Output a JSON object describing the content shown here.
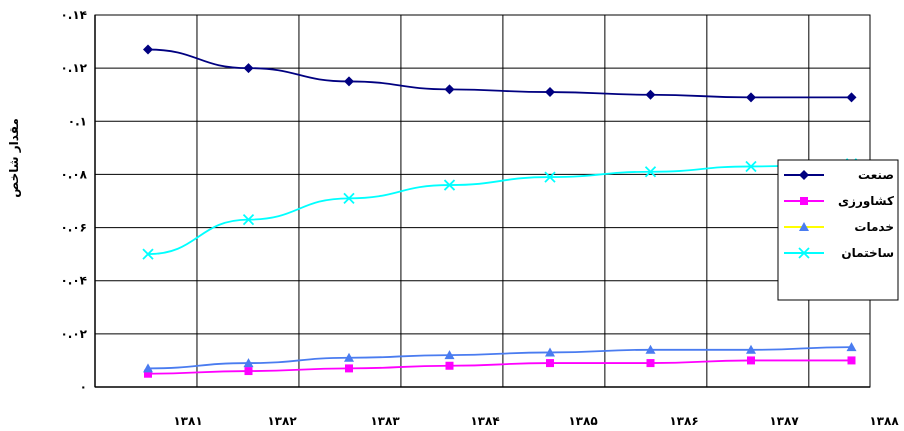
{
  "chart_data": {
    "type": "line",
    "title": "",
    "xlabel": "",
    "ylabel": "مقدار شاخص",
    "ylim": [
      0,
      0.14
    ],
    "y_ticks": [
      "۰",
      "۰.۰۲",
      "۰.۰۴",
      "۰.۰۶",
      "۰.۰۸",
      "۰.۱",
      "۰.۱۲",
      "۰.۱۴"
    ],
    "y_tick_values": [
      0,
      0.02,
      0.04,
      0.06,
      0.08,
      0.1,
      0.12,
      0.14
    ],
    "categories": [
      "۱۳۸۱",
      "۱۳۸۲",
      "۱۳۸۳",
      "۱۳۸۴",
      "۱۳۸۵",
      "۱۳۸۶",
      "۱۳۸۷",
      "۱۳۸۸"
    ],
    "grid": true,
    "legend_position": "right",
    "series": [
      {
        "name": "صنعت",
        "color": "#000080",
        "marker": "diamond",
        "values": [
          0.127,
          0.12,
          0.115,
          0.112,
          0.111,
          0.11,
          0.109,
          0.109
        ]
      },
      {
        "name": "کشاورزی",
        "color": "#ff00ff",
        "marker": "square",
        "values": [
          0.005,
          0.006,
          0.007,
          0.008,
          0.009,
          0.009,
          0.01,
          0.01
        ]
      },
      {
        "name": "خدمات",
        "color": "#4a7cf0",
        "marker": "triangle",
        "legend_line_color": "#ffff00",
        "values": [
          0.007,
          0.009,
          0.011,
          0.012,
          0.013,
          0.014,
          0.014,
          0.015
        ]
      },
      {
        "name": "ساختمان",
        "color": "#00ffff",
        "marker": "x",
        "values": [
          0.05,
          0.063,
          0.071,
          0.076,
          0.079,
          0.081,
          0.083,
          0.084
        ]
      }
    ]
  }
}
